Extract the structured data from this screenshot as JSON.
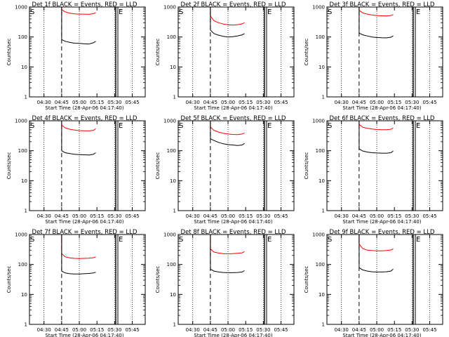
{
  "chart_data": [
    {
      "type": "line",
      "title": "Det 1f BLACK = Events, RED = LLD",
      "xlabel": "Start Time (28-Apr-06 04:17:40)",
      "ylabel": "Counts/sec",
      "xtick_labels": [
        "04:30",
        "04:45",
        "05:00",
        "05:15",
        "05:30",
        "05:45"
      ],
      "ytick_labels": [
        "1",
        "10",
        "100",
        "1000"
      ],
      "yscale": "log",
      "ylim": [
        1,
        1000
      ],
      "xlim": [
        "04:17:40",
        "05:56:00"
      ],
      "markers": [
        "S",
        "F",
        "E"
      ],
      "series": [
        {
          "color": "#000000",
          "x": [
            "04:45",
            "04:48",
            "04:52",
            "04:56",
            "05:00",
            "05:04",
            "05:08",
            "05:12",
            "05:14"
          ],
          "values": [
            82,
            72,
            66,
            62,
            61,
            59,
            58,
            64,
            72
          ]
        },
        {
          "color": "#ff0000",
          "x": [
            "04:45",
            "04:48",
            "04:52",
            "04:56",
            "05:00",
            "05:04",
            "05:08",
            "05:12",
            "05:14"
          ],
          "values": [
            820,
            690,
            620,
            590,
            580,
            580,
            570,
            600,
            650
          ]
        }
      ]
    },
    {
      "type": "line",
      "title": "Det 2f BLACK = Events, RED = LLD",
      "xlabel": "Start Time (28-Apr-06 04:17:40)",
      "ylabel": "Counts/sec",
      "xtick_labels": [
        "04:30",
        "04:45",
        "05:00",
        "05:15",
        "05:30",
        "05:45"
      ],
      "ytick_labels": [
        "1",
        "10",
        "100",
        "1000"
      ],
      "yscale": "log",
      "ylim": [
        1,
        1000
      ],
      "xlim": [
        "04:17:40",
        "05:56:00"
      ],
      "markers": [
        "S",
        "F",
        "E"
      ],
      "series": [
        {
          "color": "#000000",
          "x": [
            "04:45",
            "04:48",
            "04:52",
            "04:56",
            "05:00",
            "05:04",
            "05:08",
            "05:12",
            "05:14"
          ],
          "values": [
            170,
            130,
            115,
            105,
            100,
            102,
            108,
            118,
            130
          ]
        },
        {
          "color": "#ff0000",
          "x": [
            "04:45",
            "04:48",
            "04:52",
            "04:56",
            "05:00",
            "05:04",
            "05:08",
            "05:12",
            "05:14"
          ],
          "values": [
            500,
            350,
            300,
            270,
            255,
            250,
            255,
            275,
            300
          ]
        }
      ]
    },
    {
      "type": "line",
      "title": "Det 3f BLACK = Events, RED = LLD",
      "xlabel": "Start Time (28-Apr-06 04:17:40)",
      "ylabel": "Counts/sec",
      "xtick_labels": [
        "04:30",
        "04:45",
        "05:00",
        "05:15",
        "05:30",
        "05:45"
      ],
      "ytick_labels": [
        "1",
        "10",
        "100",
        "1000"
      ],
      "yscale": "log",
      "ylim": [
        1,
        1000
      ],
      "xlim": [
        "04:17:40",
        "05:56:00"
      ],
      "markers": [
        "S",
        "F",
        "E"
      ],
      "series": [
        {
          "color": "#000000",
          "x": [
            "04:45",
            "04:48",
            "04:52",
            "04:56",
            "05:00",
            "05:04",
            "05:08",
            "05:12",
            "05:14"
          ],
          "values": [
            135,
            118,
            108,
            100,
            96,
            94,
            93,
            98,
            108
          ]
        },
        {
          "color": "#ff0000",
          "x": [
            "04:45",
            "04:48",
            "04:52",
            "04:56",
            "05:00",
            "05:04",
            "05:08",
            "05:12",
            "05:14"
          ],
          "values": [
            780,
            640,
            580,
            540,
            520,
            510,
            500,
            520,
            560
          ]
        }
      ]
    },
    {
      "type": "line",
      "title": "Det 4f BLACK = Events, RED = LLD",
      "xlabel": "Start Time (28-Apr-06 04:17:40)",
      "ylabel": "Counts/sec",
      "xtick_labels": [
        "04:30",
        "04:45",
        "05:00",
        "05:15",
        "05:30",
        "05:45"
      ],
      "ytick_labels": [
        "1",
        "10",
        "100",
        "1000"
      ],
      "yscale": "log",
      "ylim": [
        1,
        1000
      ],
      "xlim": [
        "04:17:40",
        "05:56:00"
      ],
      "markers": [
        "S",
        "F",
        "E"
      ],
      "series": [
        {
          "color": "#000000",
          "x": [
            "04:45",
            "04:48",
            "04:52",
            "04:56",
            "05:00",
            "05:04",
            "05:08",
            "05:12",
            "05:14"
          ],
          "values": [
            100,
            86,
            80,
            76,
            74,
            73,
            72,
            76,
            86
          ]
        },
        {
          "color": "#ff0000",
          "x": [
            "04:45",
            "04:48",
            "04:52",
            "04:56",
            "05:00",
            "05:04",
            "05:08",
            "05:12",
            "05:14"
          ],
          "values": [
            720,
            580,
            520,
            490,
            470,
            465,
            460,
            480,
            540
          ]
        }
      ]
    },
    {
      "type": "line",
      "title": "Det 5f BLACK = Events, RED = LLD",
      "xlabel": "Start Time (28-Apr-06 04:17:40)",
      "ylabel": "Counts/sec",
      "xtick_labels": [
        "04:30",
        "04:45",
        "05:00",
        "05:15",
        "05:30",
        "05:45"
      ],
      "ytick_labels": [
        "1",
        "10",
        "100",
        "1000"
      ],
      "yscale": "log",
      "ylim": [
        1,
        1000
      ],
      "xlim": [
        "04:17:40",
        "05:56:00"
      ],
      "markers": [
        "S",
        "F",
        "E"
      ],
      "series": [
        {
          "color": "#000000",
          "x": [
            "04:45",
            "04:48",
            "04:52",
            "04:56",
            "05:00",
            "05:04",
            "05:08",
            "05:12",
            "05:14"
          ],
          "values": [
            250,
            220,
            190,
            170,
            160,
            155,
            150,
            155,
            175
          ]
        },
        {
          "color": "#ff0000",
          "x": [
            "04:45",
            "04:48",
            "04:52",
            "04:56",
            "05:00",
            "05:04",
            "05:08",
            "05:12",
            "05:14"
          ],
          "values": [
            620,
            480,
            420,
            380,
            360,
            350,
            345,
            360,
            390
          ]
        }
      ]
    },
    {
      "type": "line",
      "title": "Det 6f BLACK = Events, RED = LLD",
      "xlabel": "Start Time (28-Apr-06 04:17:40)",
      "ylabel": "Counts/sec",
      "xtick_labels": [
        "04:30",
        "04:45",
        "05:00",
        "05:15",
        "05:30",
        "05:45"
      ],
      "ytick_labels": [
        "1",
        "10",
        "100",
        "1000"
      ],
      "yscale": "log",
      "ylim": [
        1,
        1000
      ],
      "xlim": [
        "04:17:40",
        "05:56:00"
      ],
      "markers": [
        "S",
        "F",
        "E"
      ],
      "series": [
        {
          "color": "#000000",
          "x": [
            "04:45",
            "04:48",
            "04:52",
            "04:56",
            "05:00",
            "05:04",
            "05:08",
            "05:12",
            "05:14"
          ],
          "values": [
            115,
            98,
            90,
            86,
            84,
            83,
            82,
            86,
            98
          ]
        },
        {
          "color": "#ff0000",
          "x": [
            "04:45",
            "04:48",
            "04:52",
            "04:56",
            "05:00",
            "05:04",
            "05:08",
            "05:12",
            "05:14"
          ],
          "values": [
            760,
            610,
            560,
            530,
            510,
            505,
            500,
            520,
            570
          ]
        }
      ]
    },
    {
      "type": "line",
      "title": "Det 7f BLACK = Events, RED = LLD",
      "xlabel": "Start Time (28-Apr-06 04:17:40)",
      "ylabel": "Counts/sec",
      "xtick_labels": [
        "04:30",
        "04:45",
        "05:00",
        "05:15",
        "05:30",
        "05:45"
      ],
      "ytick_labels": [
        "1",
        "10",
        "100",
        "1000"
      ],
      "yscale": "log",
      "ylim": [
        1,
        1000
      ],
      "xlim": [
        "04:17:40",
        "05:56:00"
      ],
      "markers": [
        "S",
        "F",
        "E"
      ],
      "series": [
        {
          "color": "#000000",
          "x": [
            "04:45",
            "04:48",
            "04:52",
            "04:56",
            "05:00",
            "05:04",
            "05:08",
            "05:12",
            "05:14"
          ],
          "values": [
            60,
            52,
            49,
            48,
            48,
            49,
            50,
            52,
            55
          ]
        },
        {
          "color": "#ff0000",
          "x": [
            "04:45",
            "04:48",
            "04:52",
            "04:56",
            "05:00",
            "05:04",
            "05:08",
            "05:12",
            "05:14"
          ],
          "values": [
            230,
            180,
            165,
            160,
            158,
            160,
            162,
            168,
            180
          ]
        }
      ]
    },
    {
      "type": "line",
      "title": "Det 8f BLACK = Events, RED = LLD",
      "xlabel": "Start Time (28-Apr-06 04:17:40)",
      "ylabel": "Counts/sec",
      "xtick_labels": [
        "04:30",
        "04:45",
        "05:00",
        "05:15",
        "05:30",
        "05:45"
      ],
      "ytick_labels": [
        "1",
        "10",
        "100",
        "1000"
      ],
      "yscale": "log",
      "ylim": [
        1,
        1000
      ],
      "xlim": [
        "04:17:40",
        "05:56:00"
      ],
      "markers": [
        "S",
        "F",
        "E"
      ],
      "series": [
        {
          "color": "#000000",
          "x": [
            "04:45",
            "04:48",
            "04:52",
            "04:56",
            "05:00",
            "05:04",
            "05:08",
            "05:12",
            "05:14"
          ],
          "values": [
            70,
            60,
            56,
            54,
            53,
            53,
            54,
            56,
            62
          ]
        },
        {
          "color": "#ff0000",
          "x": [
            "04:45",
            "04:48",
            "04:52",
            "04:56",
            "05:00",
            "05:04",
            "05:08",
            "05:12",
            "05:14"
          ],
          "values": [
            330,
            260,
            240,
            230,
            225,
            230,
            235,
            245,
            270
          ]
        }
      ]
    },
    {
      "type": "line",
      "title": "Det 9f BLACK = Events, RED = LLD",
      "xlabel": "Start Time (28-Apr-06 04:17:40)",
      "ylabel": "Counts/sec",
      "xtick_labels": [
        "04:30",
        "04:45",
        "05:00",
        "05:15",
        "05:30",
        "05:45"
      ],
      "ytick_labels": [
        "1",
        "10",
        "100",
        "1000"
      ],
      "yscale": "log",
      "ylim": [
        1,
        1000
      ],
      "xlim": [
        "04:17:40",
        "05:56:00"
      ],
      "markers": [
        "S",
        "F",
        "E"
      ],
      "series": [
        {
          "color": "#000000",
          "x": [
            "04:45",
            "04:48",
            "04:52",
            "04:56",
            "05:00",
            "05:04",
            "05:08",
            "05:12",
            "05:14"
          ],
          "values": [
            78,
            66,
            60,
            57,
            56,
            56,
            57,
            60,
            70
          ]
        },
        {
          "color": "#ff0000",
          "x": [
            "04:45",
            "04:48",
            "04:52",
            "04:56",
            "05:00",
            "05:04",
            "05:08",
            "05:12",
            "05:14"
          ],
          "values": [
            480,
            340,
            300,
            290,
            285,
            285,
            290,
            305,
            330
          ]
        }
      ]
    }
  ]
}
